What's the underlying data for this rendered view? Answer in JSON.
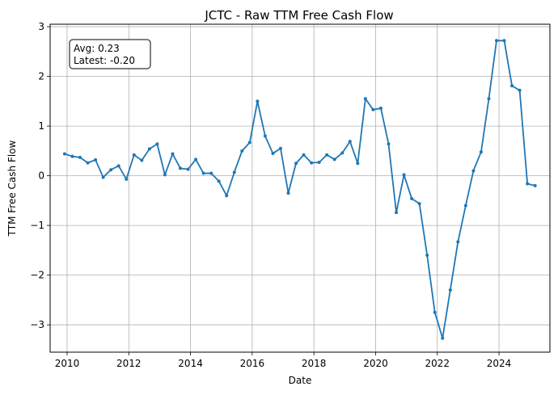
{
  "chart_data": {
    "type": "line",
    "title": "JCTC - Raw TTM Free Cash Flow",
    "xlabel": "Date",
    "ylabel": "TTM Free Cash Flow",
    "xlim": [
      2009.45,
      2025.65
    ],
    "ylim": [
      -3.55,
      3.05
    ],
    "xticks": [
      2010,
      2012,
      2014,
      2016,
      2018,
      2020,
      2022,
      2024
    ],
    "yticks": [
      -3,
      -2,
      -1,
      0,
      1,
      2,
      3
    ],
    "ytick_labels": [
      "−3",
      "−2",
      "−1",
      "0",
      "1",
      "2",
      "3"
    ],
    "grid": true,
    "annotation": {
      "line1": "Avg: 0.23",
      "line2": "Latest: -0.20"
    },
    "series": [
      {
        "color": "#1f77b4",
        "x": [
          2009.92,
          2010.17,
          2010.42,
          2010.67,
          2010.92,
          2011.17,
          2011.42,
          2011.67,
          2011.92,
          2012.17,
          2012.42,
          2012.67,
          2012.92,
          2013.17,
          2013.42,
          2013.67,
          2013.92,
          2014.17,
          2014.42,
          2014.67,
          2014.92,
          2015.17,
          2015.42,
          2015.67,
          2015.92,
          2016.17,
          2016.42,
          2016.67,
          2016.92,
          2017.17,
          2017.42,
          2017.67,
          2017.92,
          2018.17,
          2018.42,
          2018.67,
          2018.92,
          2019.17,
          2019.42,
          2019.67,
          2019.92,
          2020.17,
          2020.42,
          2020.67,
          2020.92,
          2021.17,
          2021.42,
          2021.67,
          2021.92,
          2022.17,
          2022.42,
          2022.67,
          2022.92,
          2023.17,
          2023.42,
          2023.67,
          2023.92,
          2024.17,
          2024.42,
          2024.67,
          2024.92,
          2025.17
        ],
        "y": [
          0.44,
          0.39,
          0.37,
          0.26,
          0.32,
          -0.03,
          0.12,
          0.2,
          -0.07,
          0.42,
          0.31,
          0.54,
          0.64,
          0.02,
          0.44,
          0.15,
          0.13,
          0.33,
          0.05,
          0.05,
          -0.11,
          -0.4,
          0.07,
          0.5,
          0.67,
          1.5,
          0.8,
          0.45,
          0.55,
          -0.35,
          0.25,
          0.42,
          0.26,
          0.27,
          0.42,
          0.33,
          0.46,
          0.69,
          0.25,
          1.55,
          1.33,
          1.36,
          0.64,
          -0.74,
          0.02,
          -0.46,
          -0.56,
          -1.6,
          -2.75,
          -3.27,
          -2.3,
          -1.33,
          -0.6,
          0.1,
          0.48,
          1.55,
          2.72,
          2.72,
          1.81,
          1.72,
          -0.16,
          -0.2
        ]
      }
    ]
  }
}
